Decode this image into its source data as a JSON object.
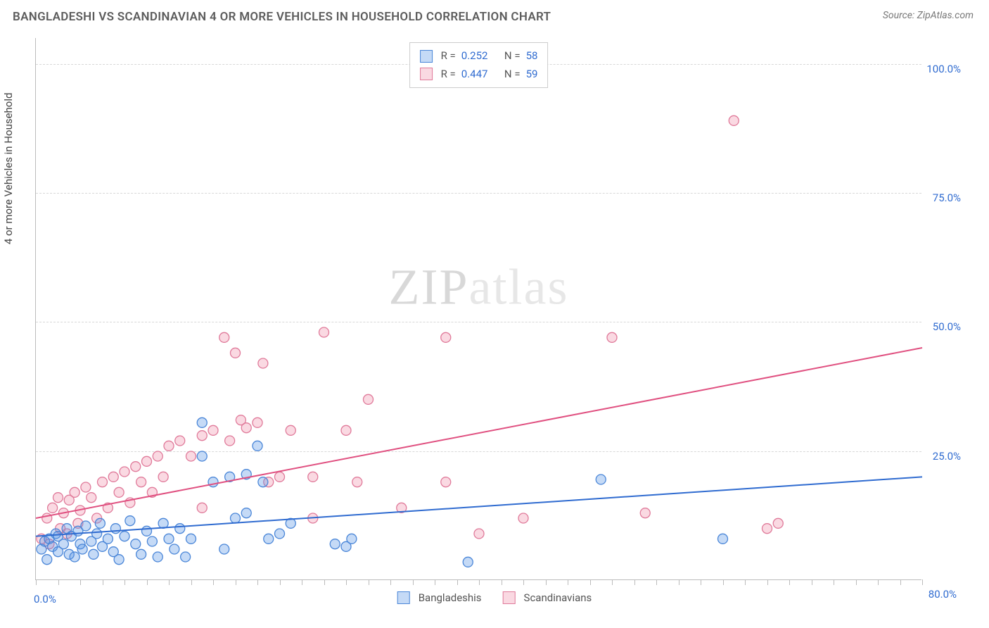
{
  "title": "BANGLADESHI VS SCANDINAVIAN 4 OR MORE VEHICLES IN HOUSEHOLD CORRELATION CHART",
  "source_label": "Source: ZipAtlas.com",
  "y_axis_label": "4 or more Vehicles in Household",
  "watermark_a": "ZIP",
  "watermark_b": "atlas",
  "chart": {
    "type": "scatter-with-regression",
    "xlim": [
      0,
      80
    ],
    "ylim": [
      0,
      105
    ],
    "x_ticks_label_start": "0.0%",
    "x_ticks_label_end": "80.0%",
    "y_ticks": [
      {
        "v": 25,
        "label": "25.0%"
      },
      {
        "v": 50,
        "label": "50.0%"
      },
      {
        "v": 75,
        "label": "75.0%"
      },
      {
        "v": 100,
        "label": "100.0%"
      }
    ],
    "x_minor_ticks": [
      0,
      2,
      4,
      6,
      8,
      10,
      12,
      14,
      16,
      18,
      20,
      22,
      24,
      26,
      28,
      30,
      32,
      34,
      36,
      38,
      40,
      42,
      44,
      46,
      48,
      50,
      52,
      54,
      56,
      58,
      60,
      62,
      64,
      66,
      68,
      70,
      72,
      74,
      76,
      78,
      80
    ],
    "background_color": "#ffffff",
    "grid_color": "#d8d8d8",
    "marker_radius": 7,
    "marker_stroke_width": 1.3,
    "line_width": 2,
    "series": {
      "bangladeshi": {
        "label": "Bangladeshis",
        "fill": "rgba(90,150,230,0.35)",
        "stroke": "#4a86d8",
        "line_color": "#2f6bd0",
        "R": "0.252",
        "N": "58",
        "regression": {
          "x1": 0,
          "y1": 8.5,
          "x2": 80,
          "y2": 20
        },
        "points": [
          [
            0.5,
            6
          ],
          [
            0.8,
            7.5
          ],
          [
            1,
            4
          ],
          [
            1.2,
            8
          ],
          [
            1.5,
            6.5
          ],
          [
            1.8,
            9
          ],
          [
            2,
            5.5
          ],
          [
            2,
            8.5
          ],
          [
            2.5,
            7
          ],
          [
            2.8,
            10
          ],
          [
            3,
            5
          ],
          [
            3.2,
            8.5
          ],
          [
            3.5,
            4.5
          ],
          [
            3.8,
            9.5
          ],
          [
            4,
            7
          ],
          [
            4.2,
            6
          ],
          [
            4.5,
            10.5
          ],
          [
            5,
            7.5
          ],
          [
            5.2,
            5
          ],
          [
            5.5,
            9
          ],
          [
            5.8,
            11
          ],
          [
            6,
            6.5
          ],
          [
            6.5,
            8
          ],
          [
            7,
            5.5
          ],
          [
            7.2,
            10
          ],
          [
            7.5,
            4
          ],
          [
            8,
            8.5
          ],
          [
            8.5,
            11.5
          ],
          [
            9,
            7
          ],
          [
            9.5,
            5
          ],
          [
            10,
            9.5
          ],
          [
            10.5,
            7.5
          ],
          [
            11,
            4.5
          ],
          [
            11.5,
            11
          ],
          [
            12,
            8
          ],
          [
            12.5,
            6
          ],
          [
            13,
            10
          ],
          [
            13.5,
            4.5
          ],
          [
            14,
            8
          ],
          [
            15,
            24
          ],
          [
            15,
            30.5
          ],
          [
            16,
            19
          ],
          [
            17,
            6
          ],
          [
            17.5,
            20
          ],
          [
            18,
            12
          ],
          [
            19,
            13
          ],
          [
            19,
            20.5
          ],
          [
            20,
            26
          ],
          [
            20.5,
            19
          ],
          [
            21,
            8
          ],
          [
            22,
            9
          ],
          [
            23,
            11
          ],
          [
            27,
            7
          ],
          [
            28,
            6.5
          ],
          [
            28.5,
            8
          ],
          [
            39,
            3.5
          ],
          [
            51,
            19.5
          ],
          [
            62,
            8
          ]
        ]
      },
      "scandinavian": {
        "label": "Scandinavians",
        "fill": "rgba(240,130,160,0.30)",
        "stroke": "#e07a9a",
        "line_color": "#e05080",
        "R": "0.447",
        "N": "59",
        "regression": {
          "x1": 0,
          "y1": 12,
          "x2": 80,
          "y2": 45
        },
        "points": [
          [
            0.5,
            8
          ],
          [
            1,
            12
          ],
          [
            1.2,
            7
          ],
          [
            1.5,
            14
          ],
          [
            2,
            16
          ],
          [
            2.2,
            10
          ],
          [
            2.5,
            13
          ],
          [
            2.8,
            9
          ],
          [
            3,
            15.5
          ],
          [
            3.5,
            17
          ],
          [
            3.8,
            11
          ],
          [
            4,
            13.5
          ],
          [
            4.5,
            18
          ],
          [
            5,
            16
          ],
          [
            5.5,
            12
          ],
          [
            6,
            19
          ],
          [
            6.5,
            14
          ],
          [
            7,
            20
          ],
          [
            7.5,
            17
          ],
          [
            8,
            21
          ],
          [
            8.5,
            15
          ],
          [
            9,
            22
          ],
          [
            9.5,
            19
          ],
          [
            10,
            23
          ],
          [
            10.5,
            17
          ],
          [
            11,
            24
          ],
          [
            11.5,
            20
          ],
          [
            12,
            26
          ],
          [
            13,
            27
          ],
          [
            14,
            24
          ],
          [
            15,
            28
          ],
          [
            15,
            14
          ],
          [
            16,
            29
          ],
          [
            17,
            47
          ],
          [
            17.5,
            27
          ],
          [
            18,
            44
          ],
          [
            18.5,
            31
          ],
          [
            19,
            29.5
          ],
          [
            20,
            30.5
          ],
          [
            20.5,
            42
          ],
          [
            21,
            19
          ],
          [
            22,
            20
          ],
          [
            23,
            29
          ],
          [
            25,
            20
          ],
          [
            25,
            12
          ],
          [
            26,
            48
          ],
          [
            28,
            29
          ],
          [
            29,
            19
          ],
          [
            30,
            35
          ],
          [
            33,
            14
          ],
          [
            37,
            47
          ],
          [
            37,
            19
          ],
          [
            40,
            9
          ],
          [
            44,
            12
          ],
          [
            52,
            47
          ],
          [
            55,
            13
          ],
          [
            63,
            89
          ],
          [
            66,
            10
          ],
          [
            67,
            11
          ]
        ]
      }
    },
    "stats_labels": {
      "R": "R =",
      "N": "N ="
    }
  },
  "legend": {
    "items": [
      {
        "key": "bangladeshi"
      },
      {
        "key": "scandinavian"
      }
    ]
  }
}
